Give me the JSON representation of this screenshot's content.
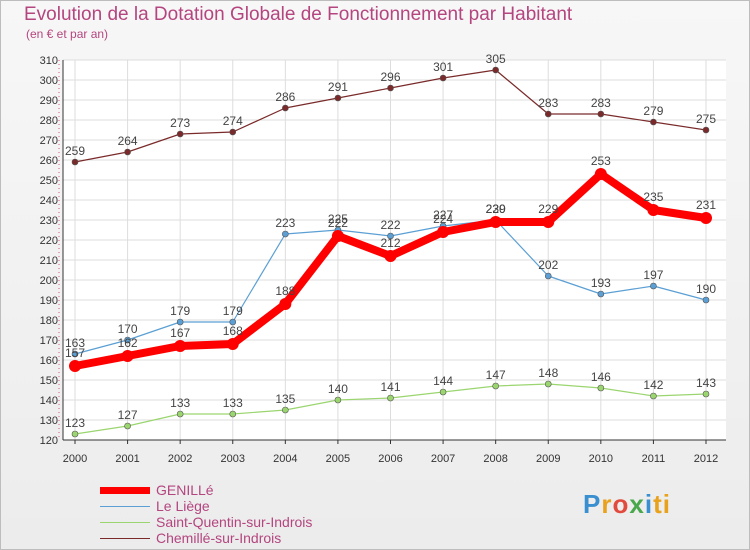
{
  "chart_data": {
    "type": "line",
    "title": "Evolution de la Dotation Globale de Fonctionnement par Habitant",
    "subtitle": "(en € et par an)",
    "x": [
      2000,
      2001,
      2002,
      2003,
      2004,
      2005,
      2006,
      2007,
      2008,
      2009,
      2010,
      2011,
      2012
    ],
    "ylim": [
      120,
      310
    ],
    "yticks": [
      120,
      130,
      140,
      150,
      160,
      170,
      180,
      190,
      200,
      210,
      220,
      230,
      240,
      250,
      260,
      270,
      280,
      290,
      300,
      310
    ],
    "grid": true,
    "series": [
      {
        "name": "Chemillé-sur-Indrois",
        "color": "#7a2a2a",
        "values": [
          259,
          264,
          273,
          274,
          286,
          291,
          296,
          301,
          305,
          283,
          283,
          279,
          275
        ]
      },
      {
        "name": "Le Liège",
        "color": "#5b9fd4",
        "values": [
          163,
          170,
          179,
          179,
          223,
          225,
          222,
          227,
          230,
          202,
          193,
          197,
          190
        ]
      },
      {
        "name": "Saint-Quentin-sur-Indrois",
        "color": "#9ad56f",
        "values": [
          123,
          127,
          133,
          133,
          135,
          140,
          141,
          144,
          147,
          148,
          146,
          142,
          143
        ]
      },
      {
        "name": "GENILLé",
        "color": "#ff0000",
        "values": [
          157,
          162,
          167,
          168,
          188,
          222,
          212,
          224,
          229,
          229,
          253,
          235,
          231
        ]
      }
    ],
    "legend": [
      "GENILLé",
      "Le Liège",
      "Saint-Quentin-sur-Indrois",
      "Chemillé-sur-Indrois"
    ]
  },
  "logo": {
    "letters": [
      "P",
      "r",
      "o",
      "x",
      "i",
      "ti"
    ]
  }
}
